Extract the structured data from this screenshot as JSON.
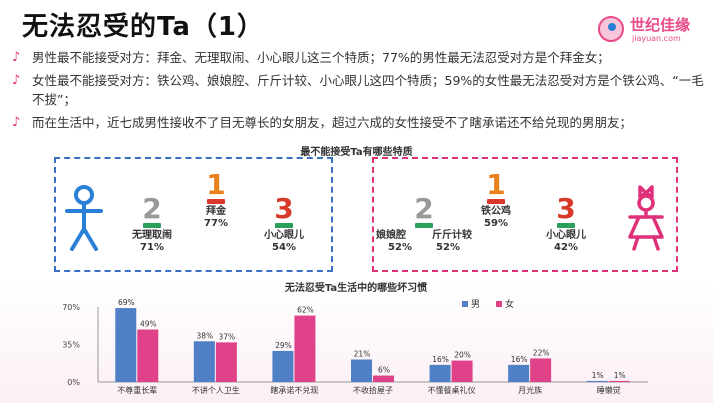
{
  "title": "无法忍受的Ta（1）",
  "logo": {
    "name": "世纪佳缘",
    "url": "jiayuan.com"
  },
  "bullets": [
    "男性最不能接受对方：拜金、无理取闹、小心眼儿这三个特质；77%的男性最无法忍受对方是个拜金女；",
    "女性最不能接受对方：铁公鸡、娘娘腔、斤斤计较、小心眼儿这四个特质；59%的女性最无法忍受对方是个铁公鸡、“一毛不拔”；",
    "而在生活中，近七成男性接收不了目无尊长的女朋友，超过六成的女性接受不了瞎承诺还不给兑现的男朋友；"
  ],
  "bullet_icon": "music-note-icon",
  "ranking_panel": {
    "title": "最不能接受Ta有哪些特质",
    "male": {
      "figure_icon": "male-figure-icon",
      "ranks": [
        {
          "rank": "2",
          "label": "无理取闹",
          "value": "71%"
        },
        {
          "rank": "1",
          "label": "拜金",
          "value": "77%"
        },
        {
          "rank": "3",
          "label": "小心眼儿",
          "value": "54%"
        }
      ]
    },
    "female": {
      "figure_icon": "female-figure-icon",
      "ranks": [
        {
          "rank": "2",
          "label": "娘娘腔",
          "value": "52%",
          "label2": "斤斤计较",
          "value2": "52%"
        },
        {
          "rank": "1",
          "label": "铁公鸡",
          "value": "59%"
        },
        {
          "rank": "3",
          "label": "小心眼儿",
          "value": "42%"
        }
      ]
    }
  },
  "colors": {
    "male": "#4f7fc4",
    "female": "#e0428a",
    "male_border": "#3a6fc4",
    "female_border": "#e0307a"
  },
  "chart_data": {
    "type": "bar",
    "title": "无法忍受Ta生活中的哪些坏习惯",
    "categories": [
      "不尊重长辈",
      "不讲个人卫生",
      "瞎承诺不兑现",
      "不收拾屋子",
      "不懂餐桌礼仪",
      "月光族",
      "睡懒觉"
    ],
    "series": [
      {
        "name": "男",
        "values": [
          69,
          38,
          29,
          21,
          16,
          16,
          1
        ]
      },
      {
        "name": "女",
        "values": [
          49,
          37,
          62,
          6,
          20,
          22,
          1
        ]
      }
    ],
    "value_labels": {
      "男": [
        "69%",
        "38%",
        "29%",
        "21%",
        "16%",
        "16%",
        "1%"
      ],
      "女": [
        "49%",
        "37%",
        "62%",
        "6%",
        "20%",
        "22%",
        "1%"
      ]
    },
    "yticks": [
      "0%",
      "35%",
      "70%"
    ],
    "ylim": [
      0,
      70
    ],
    "legend": "top-right",
    "grid": false
  }
}
